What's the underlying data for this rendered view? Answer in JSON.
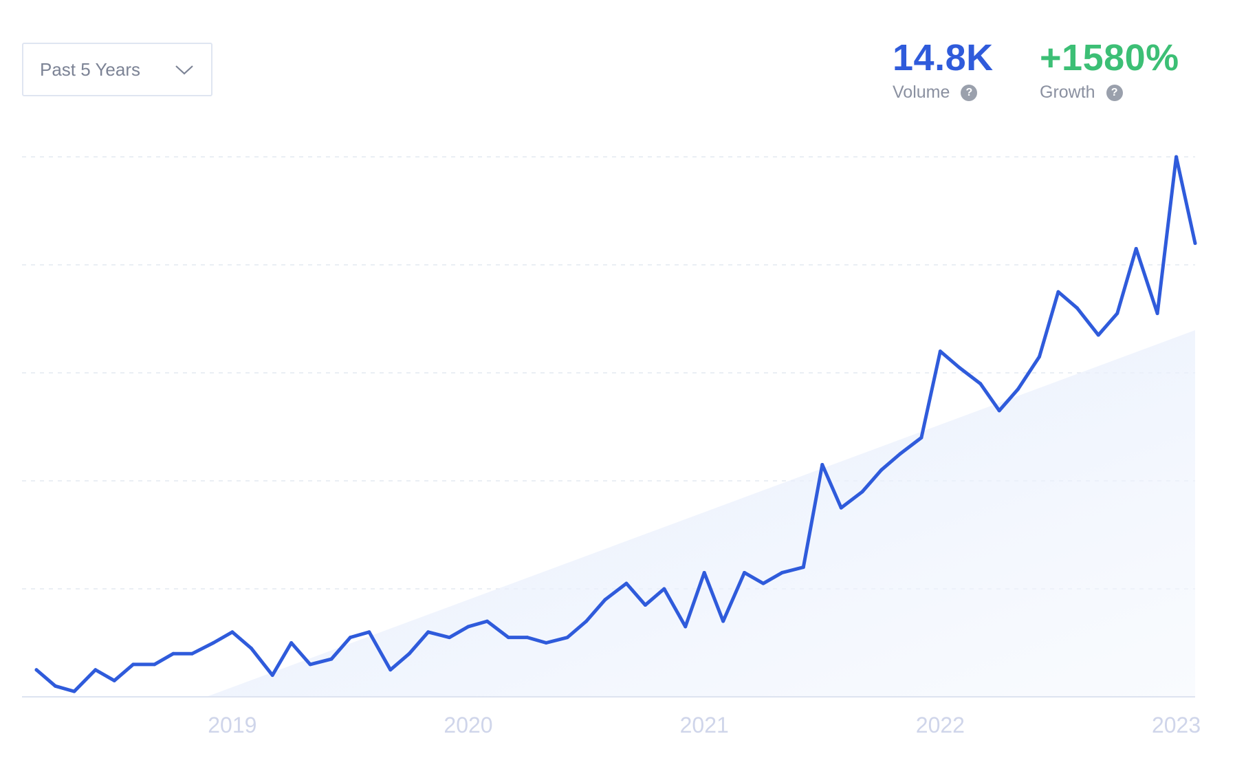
{
  "time_range": {
    "selected": "Past 5 Years",
    "icon": "chevron-down-icon"
  },
  "stats": {
    "volume": {
      "value": "14.8K",
      "label": "Volume",
      "help_icon": "question-icon",
      "color": "#2f5bdb"
    },
    "growth": {
      "value": "+1580%",
      "label": "Growth",
      "help_icon": "question-icon",
      "color": "#3cbf75"
    }
  },
  "chart_data": {
    "type": "line",
    "title": "",
    "xlabel": "",
    "ylabel": "",
    "x_ticks": [
      "2019",
      "2020",
      "2021",
      "2022",
      "2023"
    ],
    "x_range": [
      2018.17,
      2023.08
    ],
    "y_range": [
      0,
      100
    ],
    "grid": "horizontal dashed",
    "line_color": "#2f5bdb",
    "series": [
      {
        "x": [
          2018.17,
          2018.25,
          2018.33,
          2018.42,
          2018.5,
          2018.58,
          2018.67,
          2018.75,
          2018.83,
          2018.92,
          2019.0,
          2019.08,
          2019.17,
          2019.25,
          2019.33,
          2019.42,
          2019.5,
          2019.58,
          2019.67,
          2019.75,
          2019.83,
          2019.92,
          2020.0,
          2020.08,
          2020.17,
          2020.25,
          2020.33,
          2020.42,
          2020.5,
          2020.58,
          2020.67,
          2020.75,
          2020.83,
          2020.92,
          2021.0,
          2021.08,
          2021.17,
          2021.25,
          2021.33,
          2021.42,
          2021.5,
          2021.58,
          2021.67,
          2021.75,
          2021.83,
          2021.92,
          2022.0,
          2022.08,
          2022.17,
          2022.25,
          2022.33,
          2022.42,
          2022.5,
          2022.58,
          2022.67,
          2022.75,
          2022.83,
          2022.92,
          2023.0,
          2023.08
        ],
        "values": [
          5,
          2,
          1,
          5,
          3,
          6,
          6,
          8,
          8,
          10,
          12,
          9,
          4,
          10,
          6,
          7,
          11,
          12,
          5,
          8,
          12,
          11,
          13,
          14,
          11,
          11,
          10,
          11,
          14,
          18,
          21,
          17,
          20,
          13,
          23,
          14,
          23,
          21,
          23,
          24,
          43,
          35,
          38,
          42,
          45,
          48,
          64,
          61,
          58,
          53,
          57,
          63,
          75,
          72,
          67,
          71,
          83,
          71,
          100,
          84
        ]
      }
    ]
  }
}
